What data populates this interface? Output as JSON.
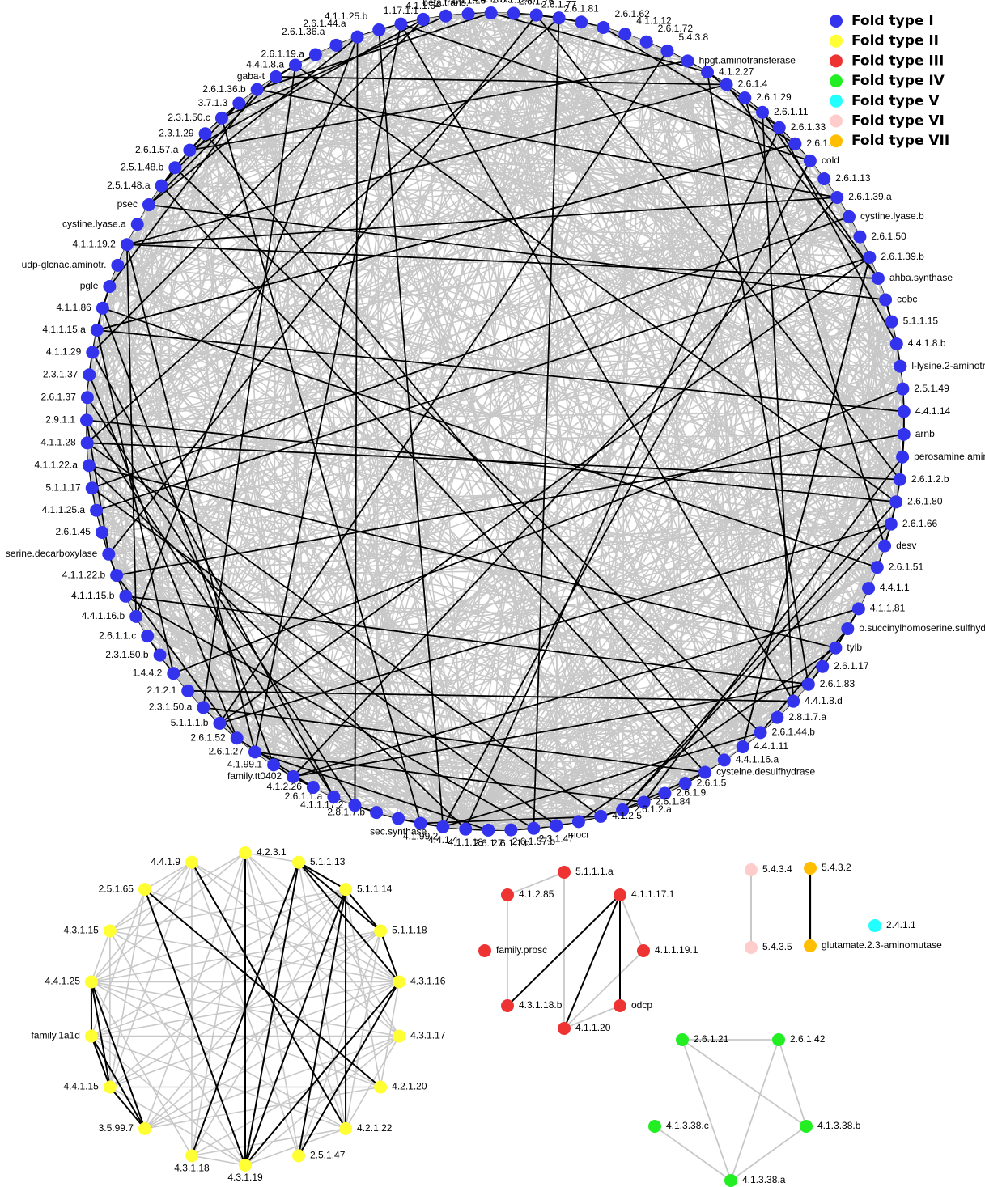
{
  "colors": {
    "Fold type I": "#3333ee",
    "Fold type II": "#ffff33",
    "Fold type III": "#ee3333",
    "Fold type IV": "#22ee22",
    "Fold type V": "#22ffff",
    "Fold type VI": "#ffcccc",
    "Fold type VII": "#ffbf00",
    "edge_gray": "#c8c8c8",
    "edge_black": "#000000"
  },
  "legend": [
    {
      "label": "Fold type I",
      "color_key": "Fold type I"
    },
    {
      "label": "Fold type II",
      "color_key": "Fold type II"
    },
    {
      "label": "Fold type III",
      "color_key": "Fold type III"
    },
    {
      "label": "Fold type IV",
      "color_key": "Fold type IV"
    },
    {
      "label": "Fold type V",
      "color_key": "Fold type V"
    },
    {
      "label": "Fold type VI",
      "color_key": "Fold type VI"
    },
    {
      "label": "Fold type VII",
      "color_key": "Fold type VII"
    }
  ],
  "fold1_nodes": [
    "2.6.1.19.b",
    "2.6.1.76",
    "2.6.1.77",
    "2.6.1.81",
    "2.6.1.62",
    "4.1.1.12",
    "2.6.1.72",
    "5.4.3.8",
    "hpgt.aminotransferase",
    "4.1.2.27",
    "2.6.1.4",
    "2.6.1.29",
    "2.6.1.11",
    "2.6.1.33",
    "2.6.1.28",
    "cold",
    "2.6.1.13",
    "2.6.1.39.a",
    "cystine.lyase.b",
    "2.6.1.50",
    "2.6.1.39.b",
    "ahba.synthase",
    "cobc",
    "5.1.1.15",
    "4.4.1.8.b",
    "l-lysine.2-aminotr.",
    "2.5.1.49",
    "4.4.1.14",
    "arnb",
    "perosamine.aminotr.",
    "2.6.1.2.b",
    "2.6.1.80",
    "2.6.1.66",
    "desv",
    "2.6.1.51",
    "4.4.1.1",
    "4.1.1.81",
    "o.succinylhomoserine.sulfhydr.",
    "tylb",
    "2.6.1.17",
    "2.6.1.83",
    "4.4.1.8.d",
    "2.8.1.7.a",
    "2.6.1.44.b",
    "4.4.1.11",
    "4.4.1.16.a",
    "cysteine.desulfhydrase",
    "2.6.1.5",
    "2.6.1.9",
    "2.6.1.84",
    "2.6.1.2.a",
    "4.1.2.5",
    "mocr",
    "2.3.1.47",
    "2.6.1.57.b",
    "2.6.1.1.b",
    "2.6.1.7",
    "4.1.1.18",
    "4.4.1.4",
    "4.1.99.2",
    "sec.synthase",
    "2.8.1.7.b",
    "4.1.1.17.2",
    "2.6.1.1.a",
    "4.1.2.26",
    "family.tt0402",
    "4.1.99.1",
    "2.6.1.27",
    "2.6.1.52",
    "5.1.1.1.b",
    "2.3.1.50.a",
    "2.1.2.1",
    "1.4.4.2",
    "2.3.1.50.b",
    "2.6.1.1.c",
    "4.4.1.16.b",
    "4.1.1.15.b",
    "4.1.1.22.b",
    "serine.decarboxylase",
    "2.6.1.45",
    "4.1.1.25.a",
    "5.1.1.17",
    "4.1.1.22.a",
    "4.1.1.28",
    "2.9.1.1",
    "2.6.1.37",
    "2.3.1.37",
    "4.1.1.29",
    "4.1.1.15.a",
    "4.1.1.86",
    "pgle",
    "udp-glcnac.aminotr.",
    "4.1.1.19.2",
    "cystine.lyase.a",
    "psec",
    "2.5.1.48.a",
    "2.5.1.48.b",
    "2.6.1.57.a",
    "2.3.1.29",
    "2.3.1.50.c",
    "3.7.1.3",
    "2.6.1.36.b",
    "gaba-t",
    "4.4.1.8.a",
    "2.6.1.19.a",
    "2.6.1.36.a",
    "2.6.1.44.a",
    "4.1.1.25.b",
    "1.17.1.1",
    "4.1.1.64",
    "beta.trans.",
    "2.6.1.18",
    "4.4.1.8.c"
  ],
  "fold2_nodes": [
    "4.2.3.1",
    "5.1.1.13",
    "5.1.1.14",
    "5.1.1.18",
    "4.3.1.16",
    "4.3.1.17",
    "4.2.1.20",
    "4.2.1.22",
    "2.5.1.47",
    "4.3.1.19",
    "4.3.1.18",
    "3.5.99.7",
    "4.4.1.15",
    "family.1a1d",
    "4.4.1.25",
    "4.3.1.15",
    "2.5.1.65",
    "4.4.1.9"
  ],
  "fold3_nodes": [
    "5.1.1.1.a",
    "4.1.1.17.1",
    "4.1.1.19.1",
    "odcp",
    "4.1.1.20",
    "4.3.1.18.b",
    "family.prosc",
    "4.1.2.85"
  ],
  "fold4_nodes": [
    "2.6.1.21",
    "2.6.1.42",
    "4.1.3.38.b",
    "4.1.3.38.a",
    "4.1.3.38.c"
  ],
  "fold5_nodes": [
    "2.4.1.1"
  ],
  "fold6_nodes": [
    "5.4.3.4",
    "5.4.3.5"
  ],
  "fold7_nodes": [
    "5.4.3.2",
    "glutamate.2.3-aminomutase"
  ]
}
